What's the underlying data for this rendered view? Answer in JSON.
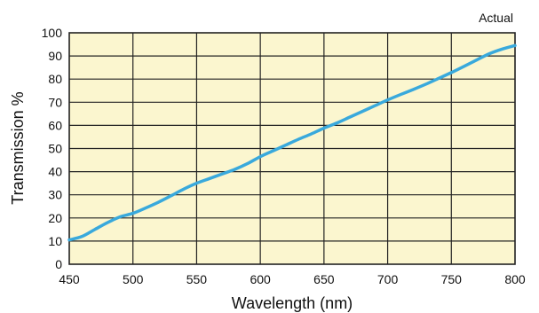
{
  "chart_data": {
    "type": "line",
    "xlabel": "Wavelength (nm)",
    "ylabel": "Transmission %",
    "xlim": [
      450,
      800
    ],
    "ylim": [
      0,
      100
    ],
    "x_ticks": [
      450,
      500,
      550,
      600,
      650,
      700,
      750,
      800
    ],
    "y_ticks": [
      0,
      10,
      20,
      30,
      40,
      50,
      60,
      70,
      80,
      90,
      100
    ],
    "grid": true,
    "plot_background": "#fbf6cf",
    "grid_color": "#222222",
    "series": [
      {
        "name": "Actual",
        "color": "#39a9dc",
        "x": [
          450,
          460,
          470,
          480,
          490,
          500,
          510,
          520,
          530,
          540,
          550,
          560,
          570,
          580,
          590,
          600,
          610,
          620,
          630,
          640,
          650,
          660,
          670,
          680,
          690,
          700,
          710,
          720,
          730,
          740,
          750,
          760,
          770,
          780,
          790,
          800
        ],
        "y": [
          10.5,
          12,
          15,
          18,
          20.5,
          22,
          24.3,
          26.8,
          29.6,
          32.5,
          35,
          37,
          39,
          41,
          43.5,
          46.5,
          49,
          51.5,
          54,
          56.3,
          58.8,
          61,
          63.5,
          66,
          68.5,
          71,
          73.3,
          75.5,
          77.8,
          80.3,
          82.8,
          85.5,
          88.3,
          91,
          93,
          94.5
        ]
      }
    ]
  }
}
